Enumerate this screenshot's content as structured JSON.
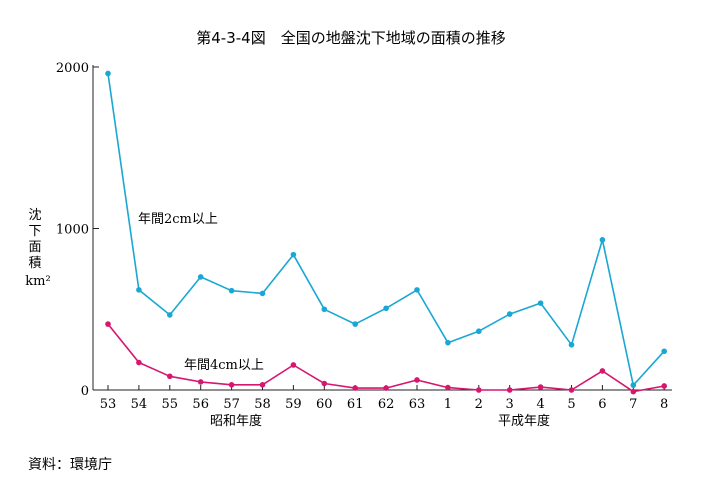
{
  "chart_data": {
    "type": "line",
    "title": "第4-3-4図　全国の地盤沈下地域の面積の推移",
    "ylabel": [
      "沈",
      "下",
      "面",
      "積"
    ],
    "yunit": "km²",
    "ylim": [
      0,
      2000
    ],
    "yticks": [
      "0",
      "1000",
      "2000"
    ],
    "categories": [
      "53",
      "54",
      "55",
      "56",
      "57",
      "58",
      "59",
      "60",
      "61",
      "62",
      "63",
      "1",
      "2",
      "3",
      "4",
      "5",
      "6",
      "7",
      "8"
    ],
    "era_labels": {
      "showa": "昭和年度",
      "heisei": "平成年度"
    },
    "series": [
      {
        "name": "年間2cm以上",
        "color": "#1aa7d4",
        "values": [
          1960,
          620,
          465,
          700,
          615,
          598,
          838,
          500,
          408,
          506,
          620,
          293,
          364,
          470,
          538,
          280,
          930,
          30,
          240
        ]
      },
      {
        "name": "年間4cm以上",
        "color": "#d6176f",
        "values": [
          408,
          170,
          85,
          50,
          32,
          32,
          155,
          40,
          12,
          12,
          62,
          15,
          0,
          0,
          18,
          0,
          118,
          -10,
          25
        ]
      }
    ],
    "source": "資料：環境庁"
  }
}
